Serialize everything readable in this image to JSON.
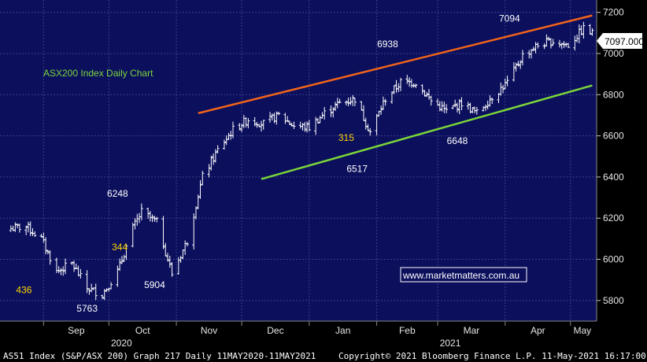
{
  "chart_data": {
    "type": "bar",
    "subtype": "ohlc",
    "title": "ASX200 Index Daily Chart",
    "ylim": [
      5700,
      7260
    ],
    "y_ticks": [
      5800,
      6000,
      6200,
      6400,
      6600,
      6800,
      7000,
      7200
    ],
    "y_tick_labels": [
      "5800",
      "6000",
      "6200",
      "6400",
      "6600",
      "6800",
      "7000",
      "7200"
    ],
    "x_labels": [
      {
        "label": "Sep",
        "date": "2020-09-01"
      },
      {
        "label": "Oct",
        "date": "2020-10-01"
      },
      {
        "label": "Nov",
        "date": "2020-11-01"
      },
      {
        "label": "Dec",
        "date": "2020-12-01"
      },
      {
        "label": "Jan",
        "date": "2021-01-01"
      },
      {
        "label": "Feb",
        "date": "2021-02-01"
      },
      {
        "label": "Mar",
        "date": "2021-03-01"
      },
      {
        "label": "Apr",
        "date": "2021-04-01"
      },
      {
        "label": "May",
        "date": "2021-05-01"
      }
    ],
    "year_labels": [
      {
        "label": "2020",
        "date": "2020-10-01"
      },
      {
        "label": "2021",
        "date": "2021-03-01"
      }
    ],
    "last_price_label": "7097.000",
    "last_price": 7097,
    "price_path": [
      [
        "2020-08-17",
        6150
      ],
      [
        "2020-08-24",
        6160
      ],
      [
        "2020-08-31",
        6100
      ],
      [
        "2020-09-07",
        5940
      ],
      [
        "2020-09-14",
        5980
      ],
      [
        "2020-09-21",
        5860
      ],
      [
        "2020-09-28",
        5830
      ],
      [
        "2020-10-05",
        5940
      ],
      [
        "2020-10-12",
        6150
      ],
      [
        "2020-10-16",
        6230
      ],
      [
        "2020-10-23",
        6180
      ],
      [
        "2020-10-30",
        5930
      ],
      [
        "2020-11-06",
        6090
      ],
      [
        "2020-11-13",
        6400
      ],
      [
        "2020-11-20",
        6530
      ],
      [
        "2020-11-27",
        6630
      ],
      [
        "2020-12-04",
        6680
      ],
      [
        "2020-12-11",
        6660
      ],
      [
        "2020-12-18",
        6700
      ],
      [
        "2020-12-25",
        6650
      ],
      [
        "2021-01-01",
        6640
      ],
      [
        "2021-01-08",
        6710
      ],
      [
        "2021-01-15",
        6760
      ],
      [
        "2021-01-22",
        6780
      ],
      [
        "2021-01-29",
        6620
      ],
      [
        "2021-02-05",
        6780
      ],
      [
        "2021-02-12",
        6860
      ],
      [
        "2021-02-19",
        6860
      ],
      [
        "2021-02-26",
        6770
      ],
      [
        "2021-03-05",
        6720
      ],
      [
        "2021-03-12",
        6760
      ],
      [
        "2021-03-19",
        6710
      ],
      [
        "2021-03-26",
        6790
      ],
      [
        "2021-04-02",
        6860
      ],
      [
        "2021-04-09",
        6990
      ],
      [
        "2021-04-16",
        7040
      ],
      [
        "2021-04-23",
        7060
      ],
      [
        "2021-04-30",
        7040
      ],
      [
        "2021-05-07",
        7120
      ],
      [
        "2021-05-11",
        7097
      ]
    ],
    "trendlines": [
      {
        "color": "#f2641b",
        "from": [
          "2020-11-11",
          6710
        ],
        "to": [
          "2021-05-11",
          7185
        ]
      },
      {
        "color": "#7bd63a",
        "from": [
          "2020-12-10",
          6390
        ],
        "to": [
          "2021-05-11",
          6845
        ]
      }
    ],
    "annotations": [
      {
        "text": "436",
        "color": "yellow",
        "date": "2020-08-23",
        "y": 5835
      },
      {
        "text": "5763",
        "color": "white",
        "date": "2020-09-21",
        "y": 5745
      },
      {
        "text": "6248",
        "color": "white",
        "date": "2020-10-05",
        "y": 6305
      },
      {
        "text": "344",
        "color": "yellow",
        "date": "2020-10-06",
        "y": 6045
      },
      {
        "text": "5904",
        "color": "white",
        "date": "2020-10-22",
        "y": 5860
      },
      {
        "text": "315",
        "color": "yellow",
        "date": "2021-01-18",
        "y": 6575
      },
      {
        "text": "6517",
        "color": "white",
        "date": "2021-01-23",
        "y": 6425
      },
      {
        "text": "6938",
        "color": "white",
        "date": "2021-02-06",
        "y": 7030
      },
      {
        "text": "6648",
        "color": "white",
        "date": "2021-03-10",
        "y": 6560
      },
      {
        "text": "7094",
        "color": "white",
        "date": "2021-04-03",
        "y": 7155
      }
    ],
    "grid": true
  },
  "watermark": "www.marketmatters.com.au",
  "footer": {
    "left": "AS51 Index (S&P/ASX 200) Graph 217  Daily 11MAY2020-11MAY2021",
    "right": "Copyright© 2021 Bloomberg Finance L.P.   11-May-2021 16:17:00"
  },
  "colors": {
    "plot_bg": "#0b0f5c",
    "grid": "#3a3f8a",
    "bars": "#ffffff",
    "axis_bg": "#000000"
  }
}
